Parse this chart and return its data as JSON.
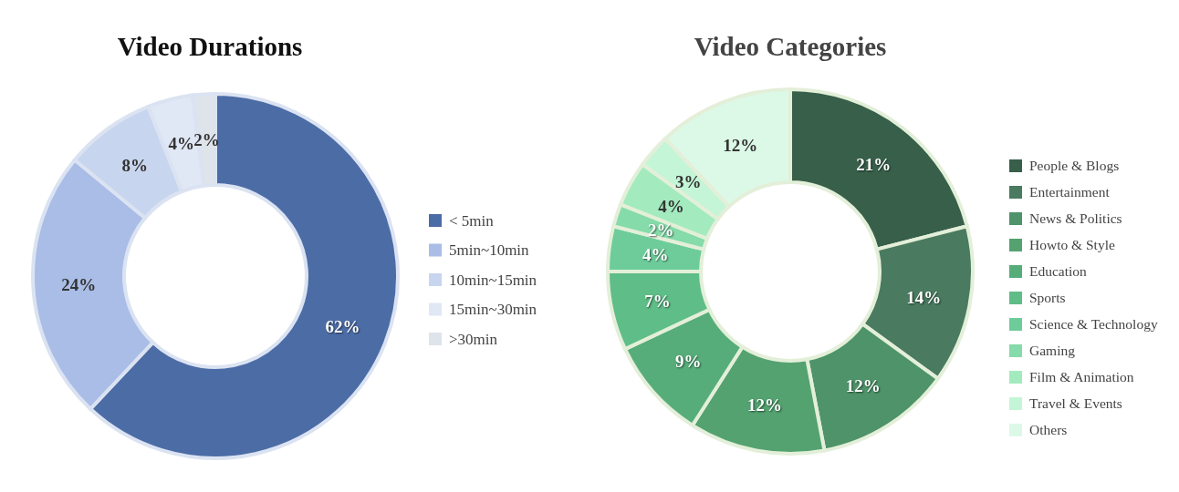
{
  "chart_data": [
    {
      "type": "donut",
      "title": "Video Durations",
      "categories": [
        "< 5min",
        "5min~10min",
        "10min~15min",
        "15min~30min",
        ">30min"
      ],
      "values": [
        62,
        24,
        8,
        4,
        2
      ],
      "colors": [
        "#4c6ca6",
        "#a9bde6",
        "#c8d5ee",
        "#e0e7f5",
        "#dfe3ea"
      ],
      "value_labels": [
        "62%",
        "24%",
        "8%",
        "4%",
        "2%"
      ],
      "legend": "right"
    },
    {
      "type": "donut",
      "title": "Video Categories",
      "categories": [
        "People & Blogs",
        "Entertainment",
        "News & Politics",
        "Howto & Style",
        "Education",
        "Sports",
        "Science & Technology",
        "Gaming",
        "Film & Animation",
        "Travel & Events",
        "Others"
      ],
      "values": [
        21,
        14,
        12,
        12,
        9,
        7,
        4,
        2,
        4,
        3,
        12
      ],
      "colors": [
        "#375f4a",
        "#4a7a5f",
        "#4e9369",
        "#53a270",
        "#56ad7a",
        "#5fbd87",
        "#6dcc9a",
        "#85dba9",
        "#a3ebbf",
        "#c4f5d6",
        "#dcf9e7"
      ],
      "value_labels": [
        "21%",
        "14%",
        "12%",
        "12%",
        "9%",
        "7%",
        "4%",
        "2%",
        "4%",
        "3%",
        "12%"
      ],
      "legend": "right"
    }
  ]
}
